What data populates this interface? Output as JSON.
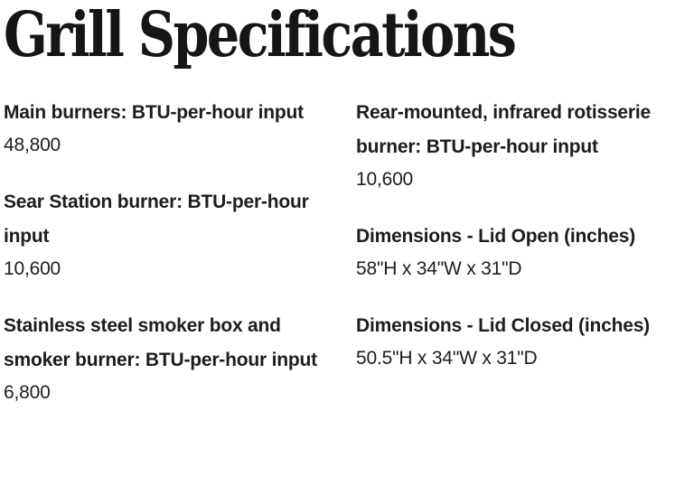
{
  "page": {
    "title": "Grill Specifications"
  },
  "colors": {
    "background": "#ffffff",
    "title_text": "#161616",
    "body_text": "#1d1d1d"
  },
  "specs": {
    "left": [
      {
        "label": "Main burners: BTU-per-hour input",
        "value": "48,800"
      },
      {
        "label": "Sear Station burner: BTU-per-hour input",
        "value": "10,600"
      },
      {
        "label": "Stainless steel smoker box and smoker burner: BTU-per-hour input",
        "value": "6,800"
      }
    ],
    "right": [
      {
        "label": "Rear-mounted, infrared rotisserie burner: BTU-per-hour input",
        "value": "10,600"
      },
      {
        "label": "Dimensions - Lid Open (inches)",
        "value": "58\"H x 34\"W x 31\"D"
      },
      {
        "label": "Dimensions - Lid Closed (inches)",
        "value": "50.5\"H x 34\"W x 31\"D"
      }
    ]
  }
}
